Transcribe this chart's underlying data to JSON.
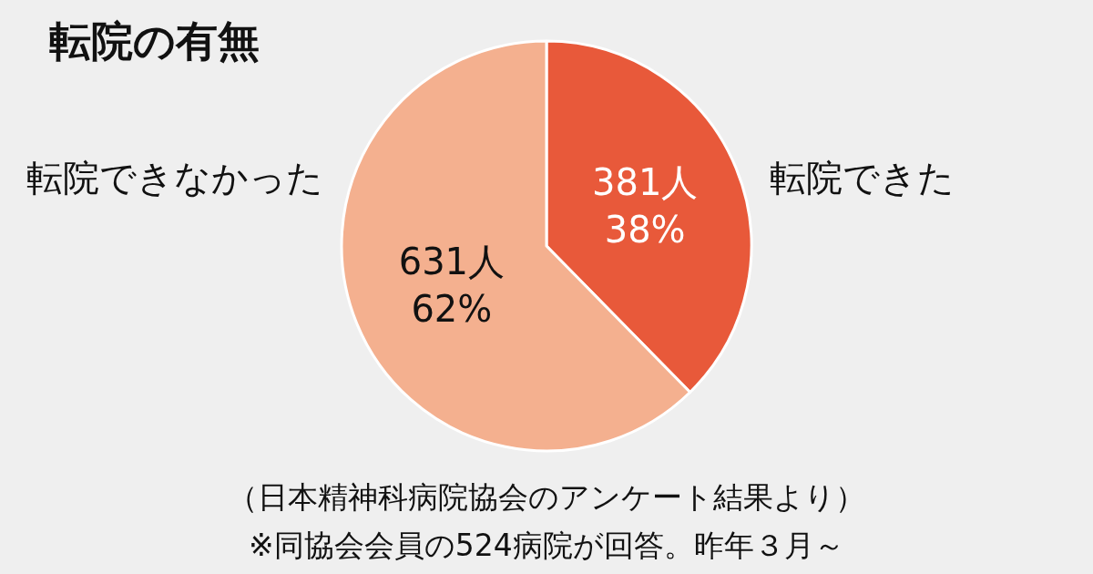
{
  "chart_data": {
    "type": "pie",
    "title": "転院の有無",
    "categories": [
      "転院できた",
      "転院できなかった"
    ],
    "values": [
      381,
      631
    ],
    "colors": [
      "#e8593a",
      "#f4b08f"
    ],
    "value_labels": [
      "381人\n38%",
      "631人\n62%"
    ],
    "legend": false,
    "annotations": [
      "（日本精神科病院協会のアンケート結果より）",
      "※同協会会員の524病院が回答。昨年３月～"
    ]
  }
}
